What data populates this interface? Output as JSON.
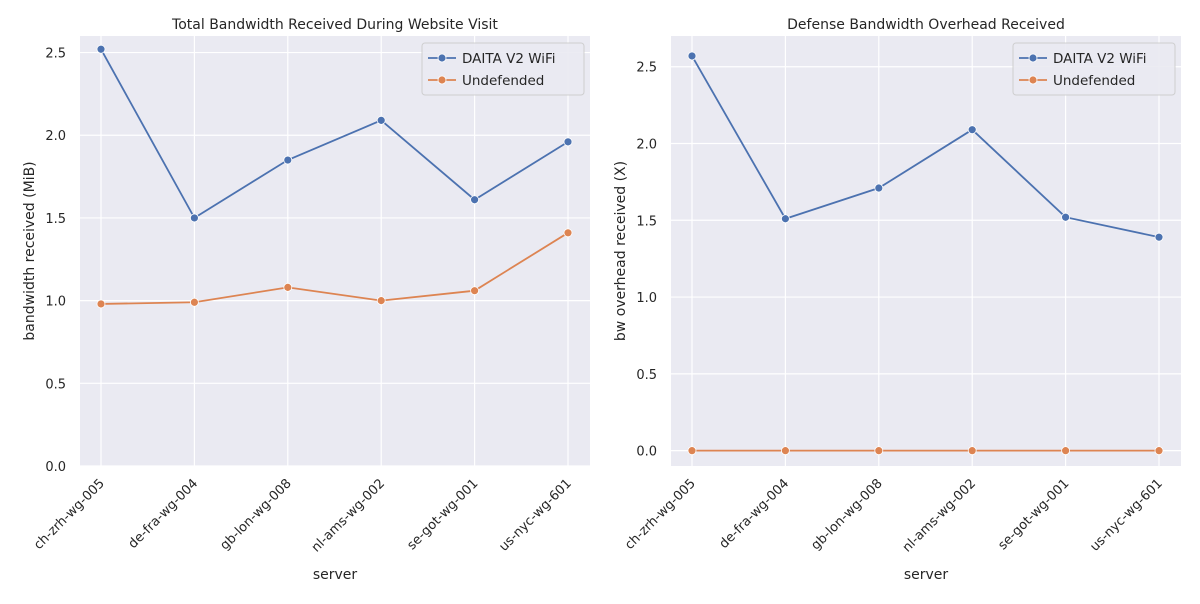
{
  "chart_data": [
    {
      "type": "line",
      "title": "Total Bandwidth Received During Website Visit",
      "xlabel": "server",
      "ylabel": "bandwidth received (MiB)",
      "categories": [
        "ch-zrh-wg-005",
        "de-fra-wg-004",
        "gb-lon-wg-008",
        "nl-ams-wg-002",
        "se-got-wg-001",
        "us-nyc-wg-601"
      ],
      "ylim": [
        0,
        2.6
      ],
      "yticks": [
        "0.0",
        "0.5",
        "1.0",
        "1.5",
        "2.0",
        "2.5"
      ],
      "grid": true,
      "legend": "top-right",
      "series": [
        {
          "name": "DAITA V2 WiFi",
          "color": "#4c72b0",
          "values": [
            2.52,
            1.5,
            1.85,
            2.09,
            1.61,
            1.96
          ]
        },
        {
          "name": "Undefended",
          "color": "#dd8452",
          "values": [
            0.98,
            0.99,
            1.08,
            1.0,
            1.06,
            1.41
          ]
        }
      ]
    },
    {
      "type": "line",
      "title": "Defense Bandwidth Overhead Received",
      "xlabel": "server",
      "ylabel": "bw overhead received (X)",
      "categories": [
        "ch-zrh-wg-005",
        "de-fra-wg-004",
        "gb-lon-wg-008",
        "nl-ams-wg-002",
        "se-got-wg-001",
        "us-nyc-wg-601"
      ],
      "ylim": [
        -0.1,
        2.7
      ],
      "yticks": [
        "0.0",
        "0.5",
        "1.0",
        "1.5",
        "2.0",
        "2.5"
      ],
      "grid": true,
      "legend": "top-right",
      "series": [
        {
          "name": "DAITA V2 WiFi",
          "color": "#4c72b0",
          "values": [
            2.57,
            1.51,
            1.71,
            2.09,
            1.52,
            1.39
          ]
        },
        {
          "name": "Undefended",
          "color": "#dd8452",
          "values": [
            0.0,
            0.0,
            0.0,
            0.0,
            0.0,
            0.0
          ]
        }
      ]
    }
  ]
}
